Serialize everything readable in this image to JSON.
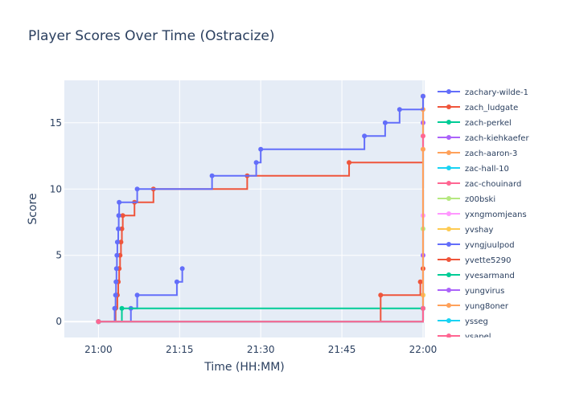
{
  "chart_data": {
    "type": "line",
    "line_shape": "step-post",
    "title": "Player Scores Over Time (Ostracize)",
    "xlabel": "Time (HH:MM)",
    "ylabel": "Score",
    "xlim": [
      "21:00",
      "22:00"
    ],
    "ylim": [
      -1.2,
      18.2
    ],
    "x_ticks": [
      "21:00",
      "21:15",
      "21:30",
      "21:45",
      "22:00"
    ],
    "y_ticks": [
      0,
      5,
      10,
      15
    ],
    "grid": true,
    "legend_position": "right",
    "series": [
      {
        "name": "zachary-wilde-1",
        "color": "#636efa",
        "points": [
          [
            "21:00:00",
            0
          ],
          [
            "21:06:00",
            1
          ],
          [
            "21:07:10",
            2
          ],
          [
            "21:14:30",
            3
          ],
          [
            "21:15:30",
            4
          ]
        ]
      },
      {
        "name": "zach_ludgate",
        "color": "#ef553b",
        "points": [
          [
            "21:00:00",
            0
          ],
          [
            "21:03:10",
            1
          ],
          [
            "21:03:30",
            2
          ],
          [
            "21:03:40",
            3
          ],
          [
            "21:03:50",
            4
          ],
          [
            "21:04:00",
            5
          ],
          [
            "21:04:10",
            6
          ],
          [
            "21:04:20",
            7
          ],
          [
            "21:04:30",
            8
          ],
          [
            "21:06:40",
            9
          ],
          [
            "21:10:10",
            10
          ],
          [
            "21:27:30",
            11
          ],
          [
            "21:46:20",
            12
          ],
          [
            "22:00:00",
            17
          ]
        ]
      },
      {
        "name": "zach-perkel",
        "color": "#00cc96",
        "points": [
          [
            "21:00:00",
            0
          ],
          [
            "21:04:20",
            1
          ],
          [
            "22:00:00",
            1
          ]
        ]
      },
      {
        "name": "zach-kiehkaefer",
        "color": "#ab63fa",
        "points": [
          [
            "21:00:00",
            0
          ],
          [
            "22:00:00",
            15
          ]
        ]
      },
      {
        "name": "zach-aaron-3",
        "color": "#ffa15a",
        "points": [
          [
            "21:00:00",
            0
          ],
          [
            "22:00:00",
            16
          ]
        ]
      },
      {
        "name": "zac-hall-10",
        "color": "#19d3f3",
        "points": [
          [
            "21:00:00",
            0
          ],
          [
            "22:00:00",
            2
          ]
        ]
      },
      {
        "name": "zac-chouinard",
        "color": "#ff6692",
        "points": [
          [
            "21:00:00",
            0
          ],
          [
            "22:00:00",
            14
          ]
        ]
      },
      {
        "name": "z00bski",
        "color": "#b6e880",
        "points": [
          [
            "21:00:00",
            0
          ],
          [
            "22:00:00",
            7
          ]
        ]
      },
      {
        "name": "yxngmomjeans",
        "color": "#ff97ff",
        "points": [
          [
            "21:00:00",
            0
          ],
          [
            "22:00:00",
            8
          ]
        ]
      },
      {
        "name": "yvshay",
        "color": "#fecb52",
        "points": [
          [
            "21:00:00",
            0
          ],
          [
            "22:00:00",
            1
          ],
          [
            "22:00:00",
            2
          ]
        ]
      },
      {
        "name": "yvngjuulpod",
        "color": "#636efa",
        "points": [
          [
            "21:00:00",
            0
          ],
          [
            "21:03:00",
            1
          ],
          [
            "21:03:10",
            2
          ],
          [
            "21:03:15",
            3
          ],
          [
            "21:03:20",
            4
          ],
          [
            "21:03:25",
            5
          ],
          [
            "21:03:30",
            6
          ],
          [
            "21:03:40",
            7
          ],
          [
            "21:03:45",
            8
          ],
          [
            "21:03:50",
            9
          ],
          [
            "21:07:10",
            10
          ],
          [
            "21:21:00",
            11
          ],
          [
            "21:29:10",
            12
          ],
          [
            "21:30:00",
            13
          ],
          [
            "21:49:10",
            14
          ],
          [
            "21:53:00",
            15
          ],
          [
            "21:55:40",
            16
          ],
          [
            "22:00:00",
            17
          ]
        ]
      },
      {
        "name": "yvette5290",
        "color": "#ef553b",
        "points": [
          [
            "21:00:00",
            0
          ],
          [
            "21:52:10",
            2
          ],
          [
            "21:59:30",
            3
          ],
          [
            "22:00:00",
            4
          ]
        ]
      },
      {
        "name": "yvesarmand",
        "color": "#00cc96",
        "points": [
          [
            "21:00:00",
            0
          ],
          [
            "22:00:00",
            1
          ]
        ]
      },
      {
        "name": "yungvirus",
        "color": "#ab63fa",
        "points": [
          [
            "21:00:00",
            0
          ],
          [
            "22:00:00",
            5
          ]
        ]
      },
      {
        "name": "yung8oner",
        "color": "#ffa15a",
        "points": [
          [
            "21:00:00",
            0
          ],
          [
            "22:00:00",
            13
          ]
        ]
      },
      {
        "name": "ysseg",
        "color": "#19d3f3",
        "points": [
          [
            "21:00:00",
            0
          ],
          [
            "22:00:00",
            1
          ]
        ]
      },
      {
        "name": "ysapel",
        "color": "#ff6692",
        "points": [
          [
            "21:00:00",
            0
          ],
          [
            "22:00:00",
            1
          ]
        ]
      }
    ]
  }
}
